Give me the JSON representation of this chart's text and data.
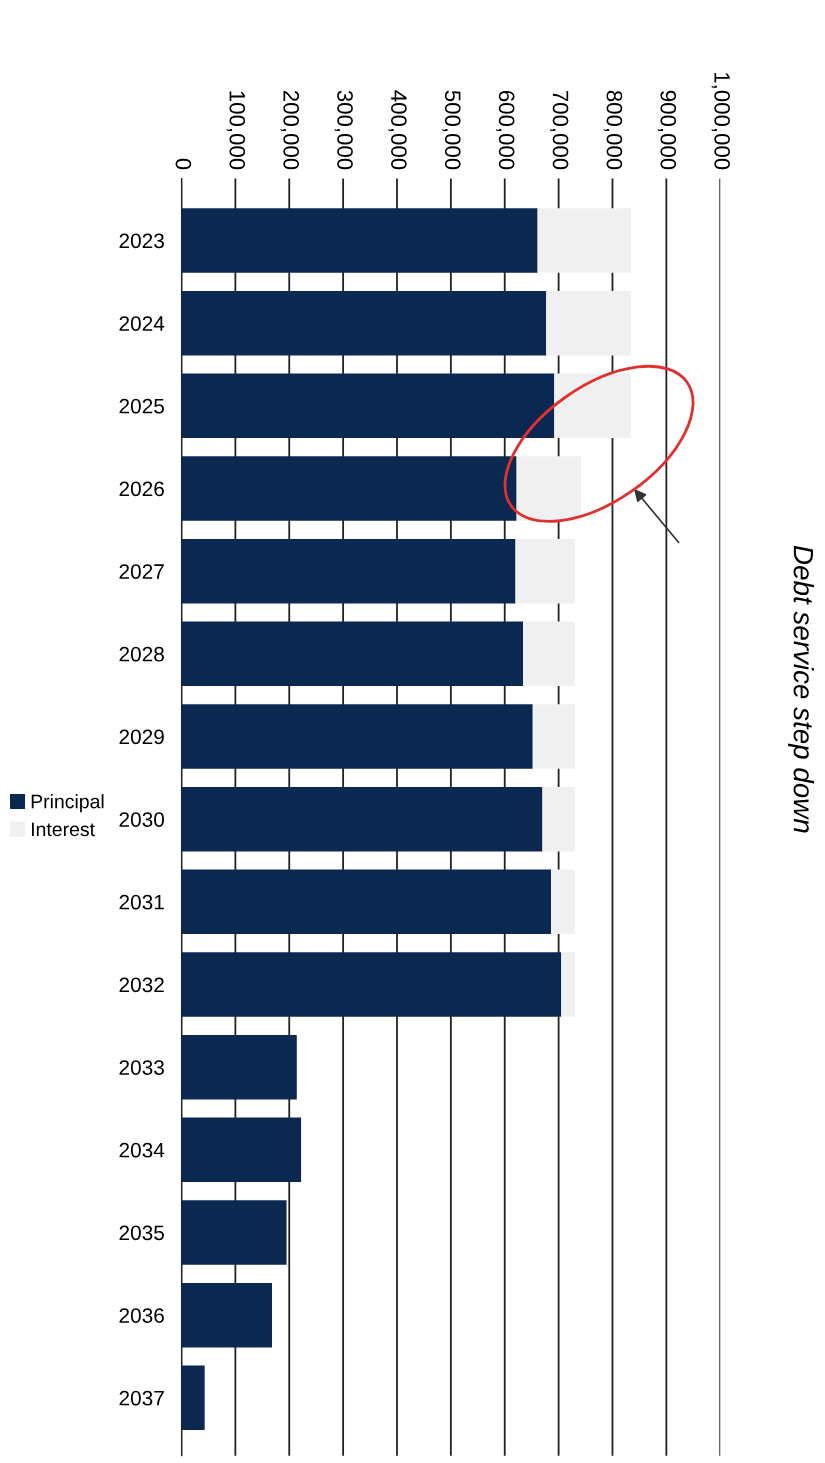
{
  "chart_data": {
    "type": "bar",
    "orientation": "horizontal",
    "stacked": true,
    "categories": [
      "2023",
      "2024",
      "2025",
      "2026",
      "2027",
      "2028",
      "2029",
      "2030",
      "2031",
      "2032",
      "2033",
      "2034",
      "2035",
      "2036",
      "2037"
    ],
    "series": [
      {
        "name": "Principal",
        "color": "#0b2851",
        "values": [
          661000,
          677000,
          692000,
          622000,
          620000,
          634000,
          652000,
          670000,
          686000,
          705000,
          214000,
          222000,
          195000,
          168000,
          43000
        ]
      },
      {
        "name": "Interest",
        "color": "#f0f0f0",
        "values": [
          173000,
          157000,
          142000,
          120000,
          110000,
          96000,
          78000,
          60000,
          44000,
          25000,
          0,
          0,
          0,
          0,
          0
        ]
      }
    ],
    "xlim": [
      0,
      1000000
    ],
    "xticks": [
      0,
      {
        "value": 100000,
        "label": "100,000"
      },
      {
        "value": 200000,
        "label": "200,000"
      },
      {
        "value": 300000,
        "label": "300,000"
      },
      {
        "value": 400000,
        "label": "400,000"
      },
      {
        "value": 500000,
        "label": "500,000"
      },
      {
        "value": 600000,
        "label": "600,000"
      },
      {
        "value": 700000,
        "label": "700,000"
      },
      {
        "value": 800000,
        "label": "800,000"
      },
      {
        "value": 900000,
        "label": "900,000"
      },
      {
        "value": 1000000,
        "label": "1,000,000"
      }
    ],
    "grid": "x",
    "legend": "left",
    "annotations": [
      "Debt service step down"
    ]
  }
}
